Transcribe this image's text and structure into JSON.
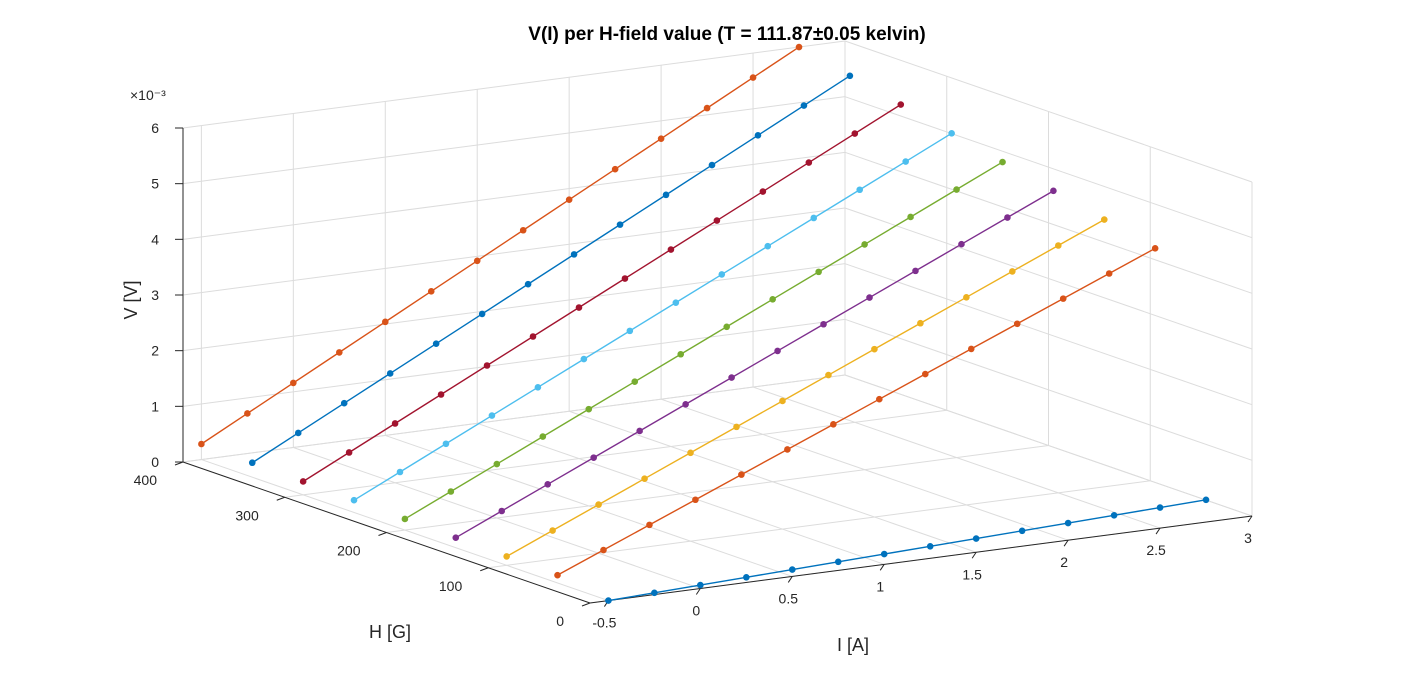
{
  "chart_data": {
    "type": "line",
    "subtype": "3d-line",
    "title": "V(I) per H-field value (T = 111.87±0.05 kelvin)",
    "xlabel": "I [A]",
    "ylabel": "H [G]",
    "zlabel": "V [V]",
    "z_exponent_label": "×10⁻³",
    "xlim": [
      -0.6,
      3
    ],
    "ylim": [
      0,
      400
    ],
    "zlim": [
      0,
      0.006
    ],
    "x_ticks": [
      "-0.5",
      "0",
      "0.5",
      "1",
      "1.5",
      "2",
      "2.5",
      "3"
    ],
    "x_tick_values": [
      -0.5,
      0,
      0.5,
      1,
      1.5,
      2,
      2.5,
      3
    ],
    "y_ticks": [
      "0",
      "100",
      "200",
      "300",
      "400"
    ],
    "y_tick_values": [
      0,
      100,
      200,
      300,
      400
    ],
    "z_ticks": [
      "0",
      "1",
      "2",
      "3",
      "4",
      "5",
      "6"
    ],
    "z_tick_values": [
      0,
      0.001,
      0.002,
      0.003,
      0.004,
      0.005,
      0.006
    ],
    "grid": true,
    "x": [
      -0.5,
      -0.25,
      0,
      0.25,
      0.5,
      0.75,
      1,
      1.25,
      1.5,
      1.75,
      2,
      2.25,
      2.5,
      2.75
    ],
    "series": [
      {
        "h": 0,
        "color": "#0072BD",
        "v_at_start": 0.0,
        "v_at_end": 0.0004
      },
      {
        "h": 50,
        "color": "#D95319",
        "v_at_start": 0.00014,
        "v_at_end": 0.0046
      },
      {
        "h": 100,
        "color": "#EDB120",
        "v_at_start": 0.00016,
        "v_at_end": 0.0048
      },
      {
        "h": 150,
        "color": "#7E2F8E",
        "v_at_start": 0.00018,
        "v_at_end": 0.005
      },
      {
        "h": 200,
        "color": "#77AC30",
        "v_at_start": 0.0002,
        "v_at_end": 0.0052
      },
      {
        "h": 250,
        "color": "#4DBEEE",
        "v_at_start": 0.00022,
        "v_at_end": 0.0054
      },
      {
        "h": 300,
        "color": "#A2142F",
        "v_at_start": 0.00024,
        "v_at_end": 0.0056
      },
      {
        "h": 350,
        "color": "#0072BD",
        "v_at_start": 0.00026,
        "v_at_end": 0.0058
      },
      {
        "h": 400,
        "color": "#D95319",
        "v_at_start": 0.00028,
        "v_at_end": 0.006
      }
    ]
  }
}
